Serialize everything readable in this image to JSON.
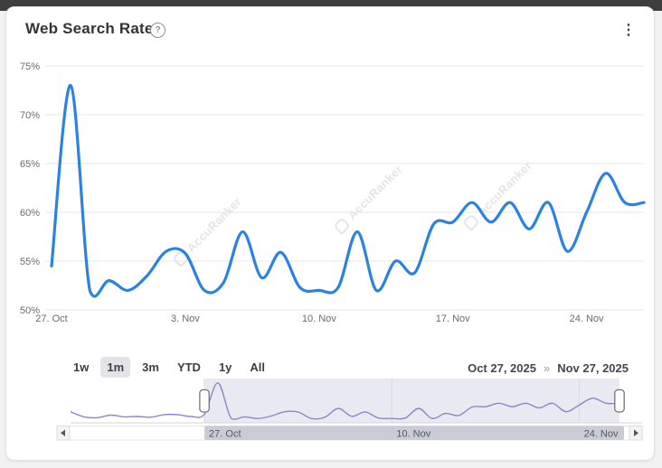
{
  "card": {
    "title": "Web Search Rate"
  },
  "icons": {
    "help": "?",
    "menu": "⋮",
    "scroll_left": "left-arrow",
    "scroll_right": "right-arrow"
  },
  "watermark": "AccuRanker",
  "range_selector": {
    "buttons": [
      {
        "label": "1w",
        "selected": false
      },
      {
        "label": "1m",
        "selected": true
      },
      {
        "label": "3m",
        "selected": false
      },
      {
        "label": "YTD",
        "selected": false
      },
      {
        "label": "1y",
        "selected": false
      },
      {
        "label": "All",
        "selected": false
      }
    ]
  },
  "date_range": {
    "from": "Oct 27, 2025",
    "separator": "»",
    "to": "Nov 27, 2025"
  },
  "colors": {
    "line": "#2b82e3",
    "navigator_line": "#8c86c6",
    "navigator_selection": "#e9e9f2",
    "scrollbar_thumb": "#c9cbd5",
    "gridline": "#e7e7ea",
    "axis_text": "#6a6a71",
    "selected_button_bg": "#e4e4e8"
  },
  "chart_data": {
    "type": "line",
    "title": "Web Search Rate",
    "unit": "%",
    "ylim": [
      50,
      75
    ],
    "grid": "horizontal",
    "yticks": [
      "50%",
      "55%",
      "60%",
      "65%",
      "70%",
      "75%"
    ],
    "x": [
      "Oct 27",
      "Oct 28",
      "Oct 29",
      "Oct 30",
      "Oct 31",
      "Nov 1",
      "Nov 2",
      "Nov 3",
      "Nov 4",
      "Nov 5",
      "Nov 6",
      "Nov 7",
      "Nov 8",
      "Nov 9",
      "Nov 10",
      "Nov 11",
      "Nov 12",
      "Nov 13",
      "Nov 14",
      "Nov 15",
      "Nov 16",
      "Nov 17",
      "Nov 18",
      "Nov 19",
      "Nov 20",
      "Nov 21",
      "Nov 22",
      "Nov 23",
      "Nov 24",
      "Nov 25",
      "Nov 26",
      "Nov 27"
    ],
    "values": [
      54.5,
      73,
      52,
      53,
      52,
      53.5,
      56,
      55.8,
      52,
      52.8,
      58,
      53.3,
      55.9,
      52.3,
      52,
      52.3,
      58,
      52,
      55,
      53.8,
      58.8,
      59,
      61,
      59,
      61,
      58.3,
      61,
      56,
      60,
      64,
      61,
      61
    ],
    "xticks": [
      {
        "label": "27. Oct",
        "index": 0
      },
      {
        "label": "3. Nov",
        "index": 7
      },
      {
        "label": "10. Nov",
        "index": 14
      },
      {
        "label": "17. Nov",
        "index": 21
      },
      {
        "label": "24. Nov",
        "index": 28
      }
    ],
    "navigator": {
      "prefix_x": [
        "Oct 17",
        "Oct 18",
        "Oct 19",
        "Oct 20",
        "Oct 21",
        "Oct 22",
        "Oct 23",
        "Oct 24",
        "Oct 25",
        "Oct 26"
      ],
      "prefix_values": [
        56,
        53,
        52.5,
        54,
        53,
        53.2,
        52.8,
        54.3,
        54.3,
        53.2
      ],
      "selected_from_index": 10,
      "xticks": [
        {
          "label": "27. Oct",
          "index": 10
        },
        {
          "label": "10. Nov",
          "index": 24
        },
        {
          "label": "24. Nov",
          "index": 38
        }
      ]
    }
  }
}
